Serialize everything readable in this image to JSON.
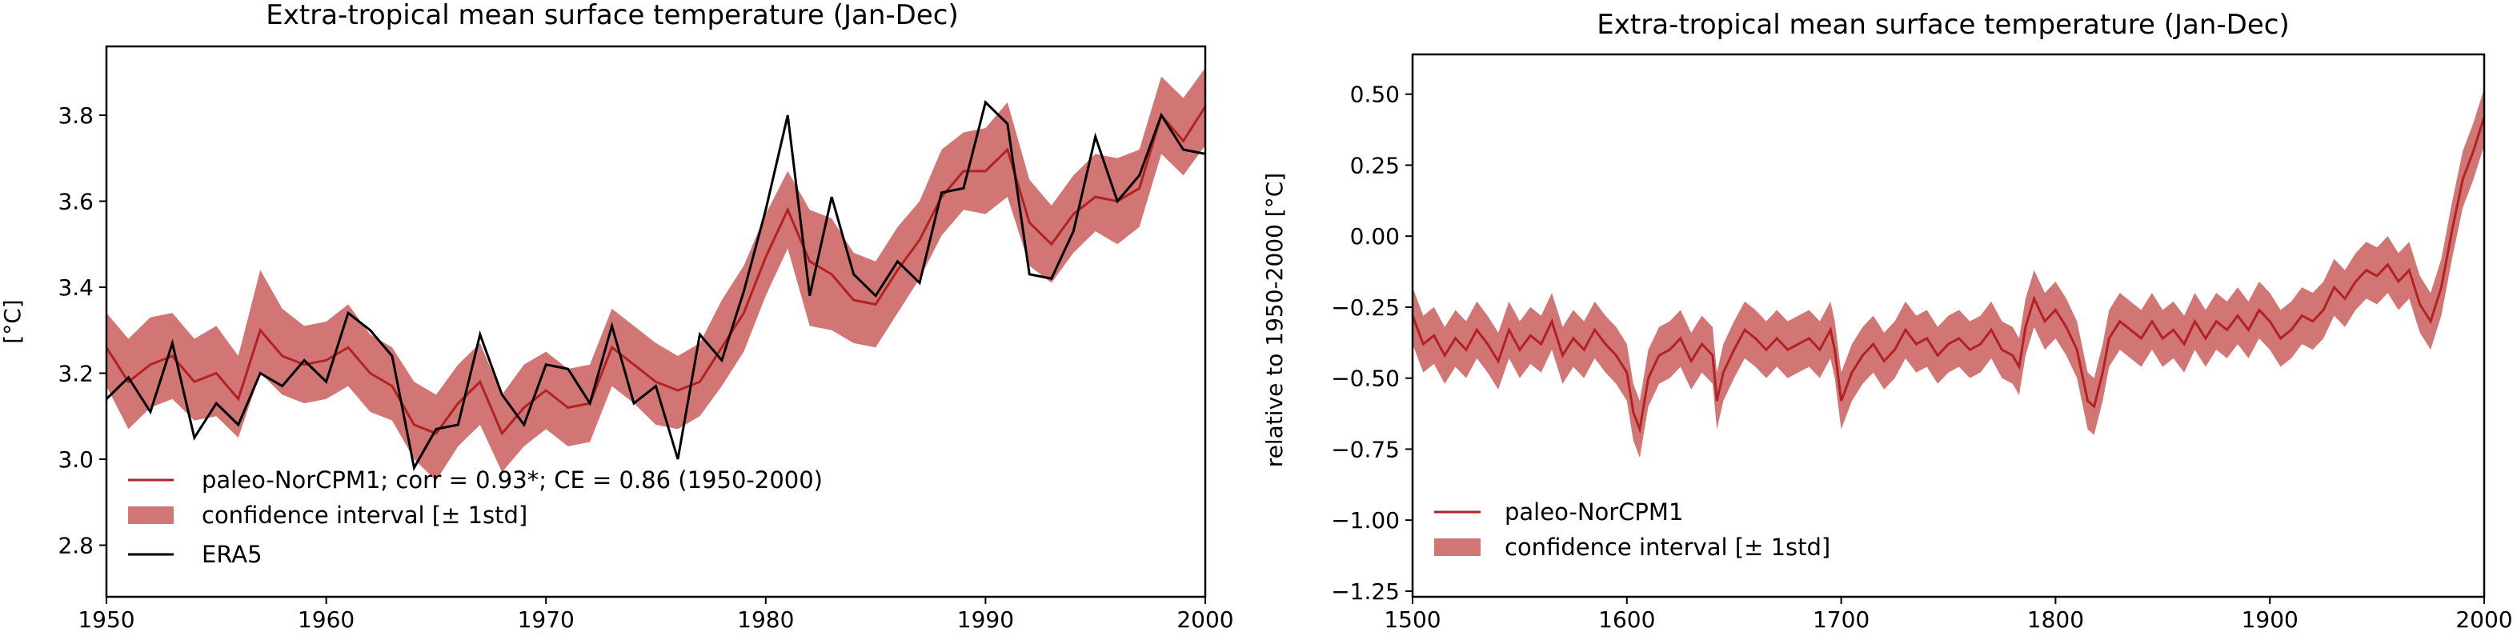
{
  "colors": {
    "model": "#b22222",
    "band": "#d27575",
    "obs": "#000000"
  },
  "chart_data": [
    {
      "type": "line",
      "title": "Extra-tropical mean surface temperature (Jan-Dec)",
      "xlabel": "",
      "ylabel": "[°C]",
      "xlim": [
        1950,
        2000
      ],
      "ylim": [
        2.68,
        3.96
      ],
      "xticks": [
        "1950",
        "1960",
        "1970",
        "1980",
        "1990",
        "2000"
      ],
      "yticks": [
        "2.8",
        "3.0",
        "3.2",
        "3.4",
        "3.6",
        "3.8"
      ],
      "legend_position": "lower-left",
      "legend": [
        "paleo-NorCPM1; corr = 0.93*; CE = 0.86 (1950-2000)",
        "confidence interval [± 1std]",
        "ERA5"
      ],
      "series": [
        {
          "name": "paleo-NorCPM1; corr = 0.93*; CE = 0.86 (1950-2000)",
          "type": "line",
          "x": [
            1950,
            1951,
            1952,
            1953,
            1954,
            1955,
            1956,
            1957,
            1958,
            1959,
            1960,
            1961,
            1962,
            1963,
            1964,
            1965,
            1966,
            1967,
            1968,
            1969,
            1970,
            1971,
            1972,
            1973,
            1974,
            1975,
            1976,
            1977,
            1978,
            1979,
            1980,
            1981,
            1982,
            1983,
            1984,
            1985,
            1986,
            1987,
            1988,
            1989,
            1990,
            1991,
            1992,
            1993,
            1994,
            1995,
            1996,
            1997,
            1998,
            1999,
            2000
          ],
          "y": [
            3.26,
            3.18,
            3.22,
            3.24,
            3.18,
            3.2,
            3.14,
            3.3,
            3.24,
            3.22,
            3.23,
            3.26,
            3.2,
            3.17,
            3.08,
            3.06,
            3.13,
            3.18,
            3.06,
            3.12,
            3.16,
            3.12,
            3.13,
            3.26,
            3.22,
            3.18,
            3.16,
            3.18,
            3.26,
            3.34,
            3.47,
            3.58,
            3.46,
            3.43,
            3.37,
            3.36,
            3.44,
            3.51,
            3.61,
            3.67,
            3.67,
            3.72,
            3.55,
            3.5,
            3.57,
            3.61,
            3.6,
            3.63,
            3.8,
            3.74,
            3.82
          ]
        },
        {
          "name": "confidence interval [± 1std]",
          "type": "band",
          "x": [
            1950,
            1951,
            1952,
            1953,
            1954,
            1955,
            1956,
            1957,
            1958,
            1959,
            1960,
            1961,
            1962,
            1963,
            1964,
            1965,
            1966,
            1967,
            1968,
            1969,
            1970,
            1971,
            1972,
            1973,
            1974,
            1975,
            1976,
            1977,
            1978,
            1979,
            1980,
            1981,
            1982,
            1983,
            1984,
            1985,
            1986,
            1987,
            1988,
            1989,
            1990,
            1991,
            1992,
            1993,
            1994,
            1995,
            1996,
            1997,
            1998,
            1999,
            2000
          ],
          "lower": [
            3.17,
            3.07,
            3.12,
            3.14,
            3.09,
            3.1,
            3.05,
            3.2,
            3.15,
            3.13,
            3.14,
            3.17,
            3.11,
            3.09,
            3.0,
            2.95,
            3.03,
            3.08,
            2.97,
            3.03,
            3.07,
            3.03,
            3.04,
            3.17,
            3.13,
            3.08,
            3.07,
            3.1,
            3.17,
            3.25,
            3.38,
            3.49,
            3.31,
            3.3,
            3.27,
            3.26,
            3.34,
            3.42,
            3.52,
            3.58,
            3.57,
            3.61,
            3.45,
            3.41,
            3.48,
            3.53,
            3.5,
            3.54,
            3.71,
            3.66,
            3.73
          ],
          "upper": [
            3.34,
            3.28,
            3.33,
            3.34,
            3.28,
            3.31,
            3.24,
            3.44,
            3.35,
            3.31,
            3.32,
            3.36,
            3.29,
            3.26,
            3.18,
            3.15,
            3.22,
            3.27,
            3.15,
            3.22,
            3.25,
            3.21,
            3.22,
            3.35,
            3.31,
            3.27,
            3.24,
            3.27,
            3.37,
            3.45,
            3.57,
            3.67,
            3.58,
            3.56,
            3.48,
            3.46,
            3.54,
            3.6,
            3.72,
            3.76,
            3.77,
            3.83,
            3.65,
            3.59,
            3.66,
            3.71,
            3.7,
            3.72,
            3.89,
            3.84,
            3.91
          ]
        },
        {
          "name": "ERA5",
          "type": "line",
          "x": [
            1950,
            1951,
            1952,
            1953,
            1954,
            1955,
            1956,
            1957,
            1958,
            1959,
            1960,
            1961,
            1962,
            1963,
            1964,
            1965,
            1966,
            1967,
            1968,
            1969,
            1970,
            1971,
            1972,
            1973,
            1974,
            1975,
            1976,
            1977,
            1978,
            1979,
            1980,
            1981,
            1982,
            1983,
            1984,
            1985,
            1986,
            1987,
            1988,
            1989,
            1990,
            1991,
            1992,
            1993,
            1994,
            1995,
            1996,
            1997,
            1998,
            1999,
            2000
          ],
          "y": [
            3.14,
            3.19,
            3.11,
            3.27,
            3.05,
            3.13,
            3.08,
            3.2,
            3.17,
            3.23,
            3.18,
            3.34,
            3.3,
            3.24,
            2.98,
            3.07,
            3.08,
            3.29,
            3.15,
            3.08,
            3.22,
            3.21,
            3.13,
            3.31,
            3.13,
            3.17,
            3.0,
            3.29,
            3.23,
            3.39,
            3.58,
            3.8,
            3.38,
            3.61,
            3.43,
            3.38,
            3.46,
            3.41,
            3.62,
            3.63,
            3.83,
            3.78,
            3.43,
            3.42,
            3.53,
            3.75,
            3.6,
            3.66,
            3.8,
            3.72,
            3.71
          ]
        }
      ]
    },
    {
      "type": "line",
      "title": "Extra-tropical mean surface temperature (Jan-Dec)",
      "xlabel": "",
      "ylabel": "relative to 1950-2000 [°C]",
      "xlim": [
        1500,
        2000
      ],
      "ylim": [
        -1.27,
        0.64
      ],
      "xticks": [
        "1500",
        "1600",
        "1700",
        "1800",
        "1900",
        "2000"
      ],
      "yticks": [
        "0.50",
        "0.25",
        "0.00",
        "−0.25",
        "−0.50",
        "−0.75",
        "−1.00",
        "−1.25"
      ],
      "legend_position": "lower-left",
      "legend": [
        "paleo-NorCPM1",
        "confidence interval [± 1std]"
      ],
      "band_halfwidth": 0.1,
      "series": [
        {
          "name": "paleo-NorCPM1",
          "type": "line",
          "x": [
            1500,
            1505,
            1510,
            1515,
            1520,
            1525,
            1530,
            1535,
            1540,
            1545,
            1550,
            1555,
            1560,
            1565,
            1570,
            1575,
            1580,
            1585,
            1590,
            1595,
            1600,
            1603,
            1606,
            1610,
            1615,
            1620,
            1625,
            1630,
            1635,
            1640,
            1642,
            1645,
            1650,
            1655,
            1660,
            1665,
            1670,
            1675,
            1680,
            1685,
            1690,
            1695,
            1697,
            1700,
            1705,
            1710,
            1715,
            1720,
            1725,
            1730,
            1735,
            1740,
            1745,
            1750,
            1755,
            1760,
            1765,
            1770,
            1775,
            1780,
            1783,
            1786,
            1790,
            1795,
            1800,
            1805,
            1810,
            1815,
            1818,
            1822,
            1825,
            1830,
            1835,
            1840,
            1845,
            1850,
            1855,
            1860,
            1865,
            1870,
            1875,
            1880,
            1885,
            1890,
            1895,
            1900,
            1905,
            1910,
            1915,
            1920,
            1925,
            1930,
            1935,
            1940,
            1945,
            1950,
            1955,
            1960,
            1965,
            1970,
            1975,
            1980,
            1985,
            1990,
            1995,
            2000
          ],
          "y": [
            -0.28,
            -0.38,
            -0.35,
            -0.42,
            -0.36,
            -0.4,
            -0.33,
            -0.38,
            -0.44,
            -0.33,
            -0.4,
            -0.35,
            -0.38,
            -0.3,
            -0.42,
            -0.36,
            -0.4,
            -0.33,
            -0.38,
            -0.42,
            -0.48,
            -0.62,
            -0.68,
            -0.5,
            -0.42,
            -0.4,
            -0.36,
            -0.44,
            -0.38,
            -0.42,
            -0.58,
            -0.48,
            -0.4,
            -0.33,
            -0.36,
            -0.4,
            -0.36,
            -0.4,
            -0.38,
            -0.36,
            -0.4,
            -0.33,
            -0.4,
            -0.58,
            -0.48,
            -0.42,
            -0.38,
            -0.44,
            -0.4,
            -0.33,
            -0.38,
            -0.36,
            -0.42,
            -0.38,
            -0.36,
            -0.4,
            -0.38,
            -0.33,
            -0.4,
            -0.42,
            -0.46,
            -0.32,
            -0.22,
            -0.3,
            -0.26,
            -0.32,
            -0.4,
            -0.58,
            -0.6,
            -0.48,
            -0.36,
            -0.3,
            -0.33,
            -0.36,
            -0.3,
            -0.36,
            -0.33,
            -0.38,
            -0.3,
            -0.36,
            -0.3,
            -0.33,
            -0.28,
            -0.33,
            -0.26,
            -0.3,
            -0.36,
            -0.33,
            -0.28,
            -0.3,
            -0.26,
            -0.18,
            -0.22,
            -0.16,
            -0.12,
            -0.14,
            -0.1,
            -0.16,
            -0.12,
            -0.24,
            -0.3,
            -0.18,
            0.02,
            0.2,
            0.3,
            0.42
          ]
        },
        {
          "name": "confidence interval [± 1std]",
          "type": "band"
        }
      ]
    }
  ]
}
